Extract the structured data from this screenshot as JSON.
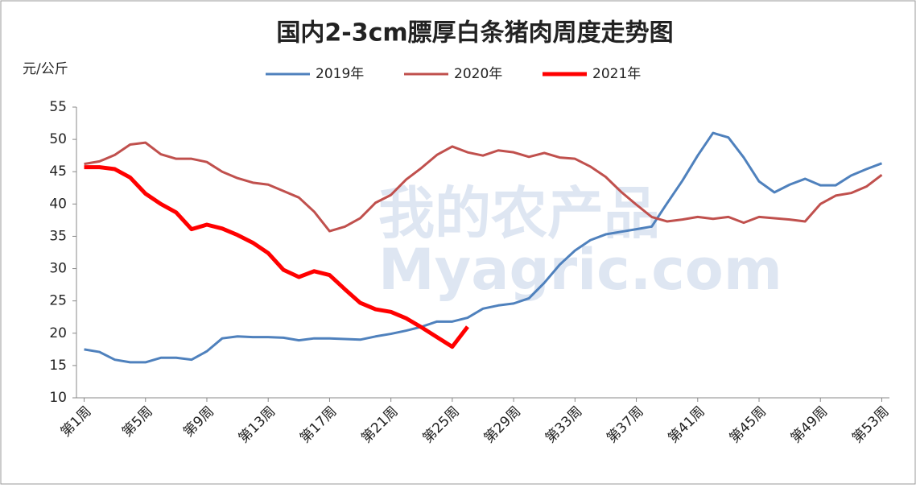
{
  "chart_data": {
    "type": "line",
    "title": "国内2-3cm膘厚白条猪肉周度走势图",
    "y_label": "元/公斤",
    "watermark": [
      "我的农产品",
      "Myagric.com"
    ],
    "categories": [
      "第1周",
      null,
      null,
      null,
      "第5周",
      null,
      null,
      null,
      "第9周",
      null,
      null,
      null,
      "第13周",
      null,
      null,
      null,
      "第17周",
      null,
      null,
      null,
      "第21周",
      null,
      null,
      null,
      "第25周",
      null,
      null,
      null,
      "第29周",
      null,
      null,
      null,
      "第33周",
      null,
      null,
      null,
      "第37周",
      null,
      null,
      null,
      "第41周",
      null,
      null,
      null,
      "第45周",
      null,
      null,
      null,
      "第49周",
      null,
      null,
      null,
      "第53周"
    ],
    "series": [
      {
        "name": "2019年",
        "color": "#4f81bd",
        "width": 3,
        "values": [
          17.5,
          17.1,
          15.9,
          15.5,
          15.5,
          16.2,
          16.2,
          15.9,
          17.2,
          19.2,
          19.5,
          19.4,
          19.4,
          19.3,
          18.9,
          19.2,
          19.2,
          19.1,
          19.0,
          19.5,
          19.9,
          20.4,
          21.0,
          21.8,
          21.8,
          22.4,
          23.8,
          24.3,
          24.6,
          25.4,
          27.8,
          30.6,
          32.8,
          34.4,
          35.3,
          35.7,
          36.1,
          36.5,
          40.1,
          43.6,
          47.5,
          51.0,
          50.3,
          47.2,
          43.5,
          41.8,
          43.0,
          43.9,
          42.9,
          42.9,
          44.4,
          45.4,
          46.3
        ]
      },
      {
        "name": "2020年",
        "color": "#c0504d",
        "width": 3,
        "values": [
          46.2,
          46.6,
          47.6,
          49.2,
          49.5,
          47.7,
          47.0,
          47.0,
          46.5,
          45.0,
          44.0,
          43.3,
          43.0,
          42.0,
          41.0,
          38.8,
          35.8,
          36.5,
          37.8,
          40.2,
          41.4,
          43.8,
          45.6,
          47.6,
          48.9,
          48.0,
          47.5,
          48.3,
          48.0,
          47.3,
          47.9,
          47.2,
          47.0,
          45.8,
          44.2,
          41.9,
          39.9,
          38.0,
          37.3,
          37.6,
          38.0,
          37.7,
          38.0,
          37.1,
          38.0,
          37.8,
          37.6,
          37.3,
          40.0,
          41.3,
          41.7,
          42.7,
          44.5
        ]
      },
      {
        "name": "2021年",
        "color": "#ff0000",
        "width": 5,
        "values": [
          45.7,
          45.7,
          45.4,
          44.1,
          41.6,
          40.0,
          38.7,
          36.1,
          36.8,
          36.2,
          35.2,
          34.0,
          32.4,
          29.8,
          28.7,
          29.6,
          29.0,
          26.8,
          24.7,
          23.7,
          23.3,
          22.3,
          20.9,
          19.4,
          17.9,
          21.0,
          null,
          null,
          null,
          null,
          null,
          null,
          null,
          null,
          null,
          null,
          null,
          null,
          null,
          null,
          null,
          null,
          null,
          null,
          null,
          null,
          null,
          null,
          null,
          null,
          null,
          null,
          null
        ]
      }
    ],
    "ylim": [
      10,
      55
    ],
    "yticks": [
      10,
      15,
      20,
      25,
      30,
      35,
      40,
      45,
      50,
      55
    ],
    "grid": false,
    "legend": "top"
  }
}
